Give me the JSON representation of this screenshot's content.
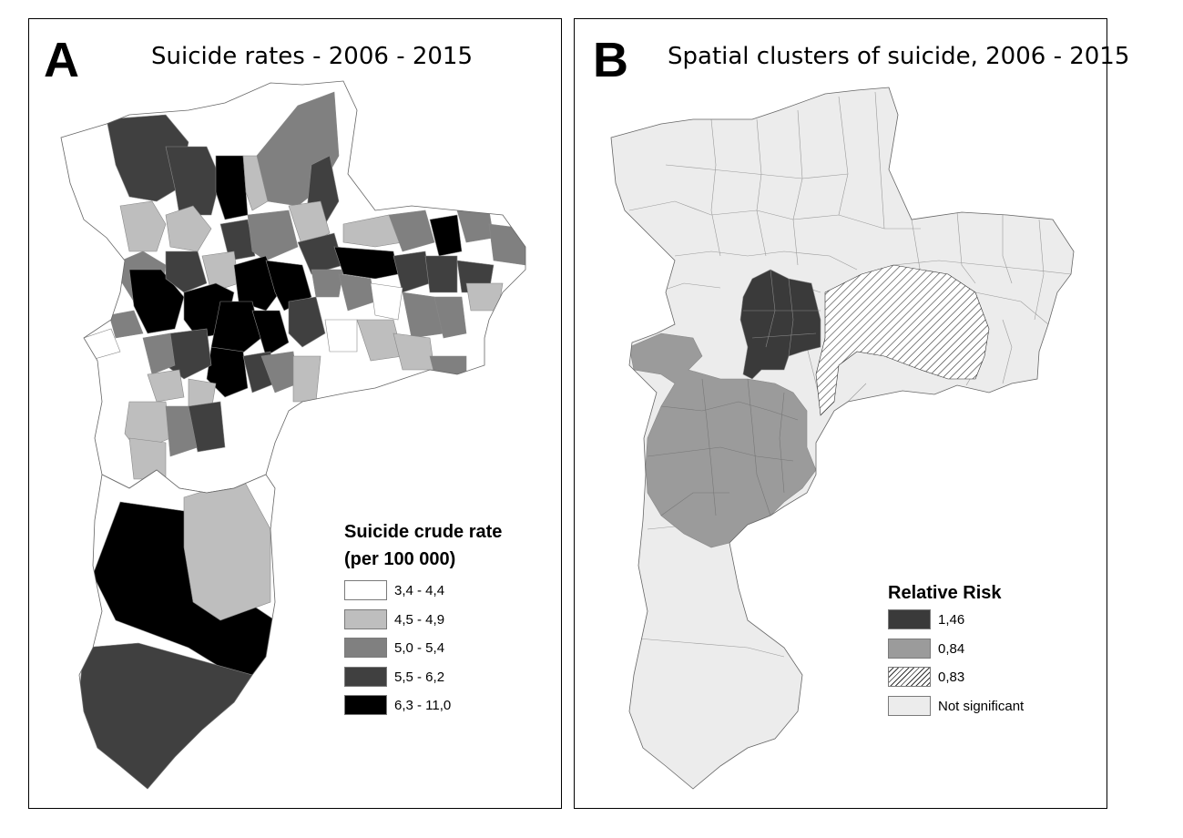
{
  "panel_a": {
    "letter": "A",
    "title": "Suicide rates - 2006 - 2015",
    "legend": {
      "title_line1": "Suicide crude rate",
      "title_line2": "(per 100 000)",
      "items": [
        {
          "label": "3,4 - 4,4",
          "color": "#ffffff"
        },
        {
          "label": "4,5 - 4,9",
          "color": "#bebebe"
        },
        {
          "label": "5,0 - 5,4",
          "color": "#808080"
        },
        {
          "label": "5,5 - 6,2",
          "color": "#404040"
        },
        {
          "label": "6,3 - 11,0",
          "color": "#000000"
        }
      ]
    }
  },
  "panel_b": {
    "letter": "B",
    "title": "Spatial clusters of suicide, 2006 - 2015",
    "legend": {
      "title": "Relative Risk",
      "items": [
        {
          "label": "1,46",
          "color": "#3a3a3a",
          "pattern": "solid"
        },
        {
          "label": "0,84",
          "color": "#9b9b9b",
          "pattern": "solid"
        },
        {
          "label": "0,83",
          "color": "#ffffff",
          "pattern": "hatch"
        },
        {
          "label": "Not significant",
          "color": "#ececec",
          "pattern": "solid"
        }
      ]
    }
  }
}
